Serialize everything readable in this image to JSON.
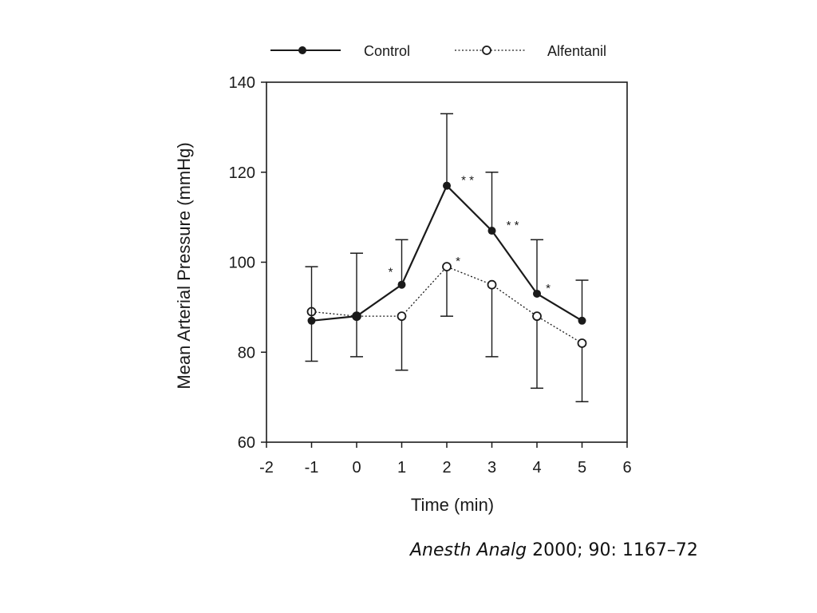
{
  "chart_data": {
    "type": "line",
    "xlabel": "Time (min)",
    "ylabel": "Mean Arterial Pressure (mmHg)",
    "xlim": [
      -2,
      6
    ],
    "ylim": [
      60,
      140
    ],
    "x_ticks": [
      -2,
      -1,
      0,
      1,
      2,
      3,
      4,
      5,
      6
    ],
    "y_ticks": [
      60,
      80,
      100,
      120,
      140
    ],
    "x_tick_labels": [
      "-2",
      "-1",
      "0",
      "1",
      "2",
      "3",
      "4",
      "5",
      "6"
    ],
    "y_tick_labels": [
      "60",
      "80",
      "100",
      "120",
      "140"
    ],
    "legend_position": "top",
    "grid": false,
    "series": [
      {
        "name": "Control",
        "marker": "filled-circle",
        "line_style": "solid",
        "color": "#1a1a1a",
        "x": [
          -1,
          0,
          1,
          2,
          3,
          4,
          5
        ],
        "y": [
          87,
          88,
          95,
          117,
          107,
          93,
          87
        ],
        "error_upper": [
          99,
          102,
          105,
          133,
          120,
          105,
          96
        ],
        "significance": [
          "",
          "",
          "*",
          "* *",
          "* *",
          "*",
          ""
        ]
      },
      {
        "name": "Alfentanil",
        "marker": "open-circle",
        "line_style": "dotted",
        "color": "#1a1a1a",
        "x": [
          -1,
          0,
          1,
          2,
          3,
          4,
          5
        ],
        "y": [
          89,
          88,
          88,
          99,
          95,
          88,
          82
        ],
        "error_lower": [
          78,
          79,
          76,
          88,
          79,
          72,
          69
        ],
        "significance": [
          "",
          "",
          "",
          "*",
          "",
          "",
          ""
        ]
      }
    ]
  },
  "citation": {
    "journal": "Anesth Analg",
    "details": " 2000; 90: 1167–72"
  }
}
